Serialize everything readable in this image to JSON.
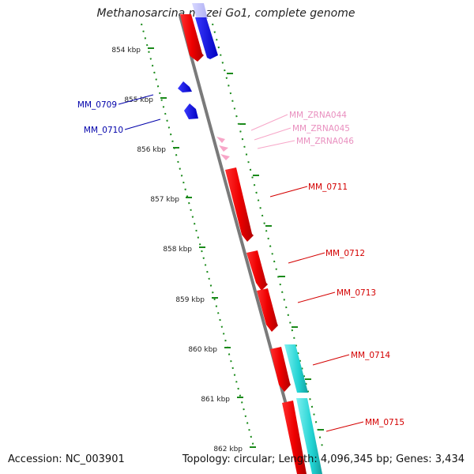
{
  "title": "Methanosarcina mazei Go1, complete genome",
  "footer": {
    "accession": "Accession: NC_003901",
    "stats": "Topology: circular; Length: 4,096,345 bp; Genes: 3,434"
  },
  "ruler": {
    "unit": "kbp",
    "ticks": [
      {
        "kbp": 854,
        "label": "854 kbp"
      },
      {
        "kbp": 855,
        "label": "855 kbp"
      },
      {
        "kbp": 856,
        "label": "856 kbp"
      },
      {
        "kbp": 857,
        "label": "857 kbp"
      },
      {
        "kbp": 858,
        "label": "858 kbp"
      },
      {
        "kbp": 859,
        "label": "859 kbp"
      },
      {
        "kbp": 860,
        "label": "860 kbp"
      },
      {
        "kbp": 861,
        "label": "861 kbp"
      },
      {
        "kbp": 862,
        "label": "862 kbp"
      }
    ]
  },
  "colors": {
    "cds_forward": "#ee0000",
    "cds_reverse": "#0000dd",
    "rna": "#f7a6c8",
    "rna_label": "#e98fbf",
    "cyan_track": "#22d3d3",
    "blue_track": "#b9b9ff",
    "ruler_dots": "#1a8a1a",
    "backbone": "#888888",
    "text_red": "#d40000",
    "text_blue": "#0000aa"
  },
  "features": [
    {
      "label": "MM_0709",
      "color": "blue"
    },
    {
      "label": "MM_0710",
      "color": "blue"
    },
    {
      "label": "MM_ZRNA044",
      "color": "pink"
    },
    {
      "label": "MM_ZRNA045",
      "color": "pink"
    },
    {
      "label": "MM_ZRNA046",
      "color": "pink"
    },
    {
      "label": "MM_0711",
      "color": "red"
    },
    {
      "label": "MM_0712",
      "color": "red"
    },
    {
      "label": "MM_0713",
      "color": "red"
    },
    {
      "label": "MM_0714",
      "color": "red"
    },
    {
      "label": "MM_0715",
      "color": "red"
    }
  ]
}
